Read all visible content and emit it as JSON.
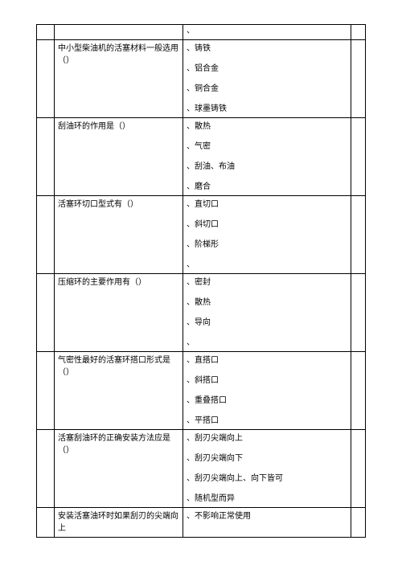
{
  "table": {
    "border_color": "#000000",
    "background_color": "#ffffff",
    "text_color": "#000000",
    "font_size": 10,
    "font_family": "SimSun",
    "columns": [
      "num",
      "question",
      "options",
      "end"
    ],
    "rows": [
      {
        "question": "",
        "options_tail": "、"
      },
      {
        "question": "中小型柴油机的活塞材料一般选用（）",
        "options": [
          "、铸铁",
          "、铝合金",
          "、铜合金",
          "、球墨铸铁"
        ]
      },
      {
        "question": "刮油环的作用是（）",
        "options": [
          "、散热",
          "、气密",
          "、刮油、布油",
          "、磨合"
        ]
      },
      {
        "question": "活塞环切口型式有（）",
        "options": [
          "、直切口",
          "、斜切口",
          "、阶梯形",
          "、"
        ]
      },
      {
        "question": "压缩环的主要作用有（）",
        "options": [
          "、密封",
          "、散热",
          "、导向",
          "、"
        ]
      },
      {
        "question": "气密性最好的活塞环搭口形式是（）",
        "options": [
          "、直搭口",
          "、斜搭口",
          "、重叠搭口",
          "、平搭口"
        ]
      },
      {
        "question": "活塞刮油环的正确安装方法应是（）",
        "options": [
          "、刮刃尖端向上",
          "、刮刃尖端向下",
          "、刮刃尖端向上、向下皆可",
          "、随机型而异"
        ]
      },
      {
        "question": "安装活塞油环时如果刮刃的尖端向上",
        "options_single": "、不影响正常使用"
      }
    ]
  }
}
